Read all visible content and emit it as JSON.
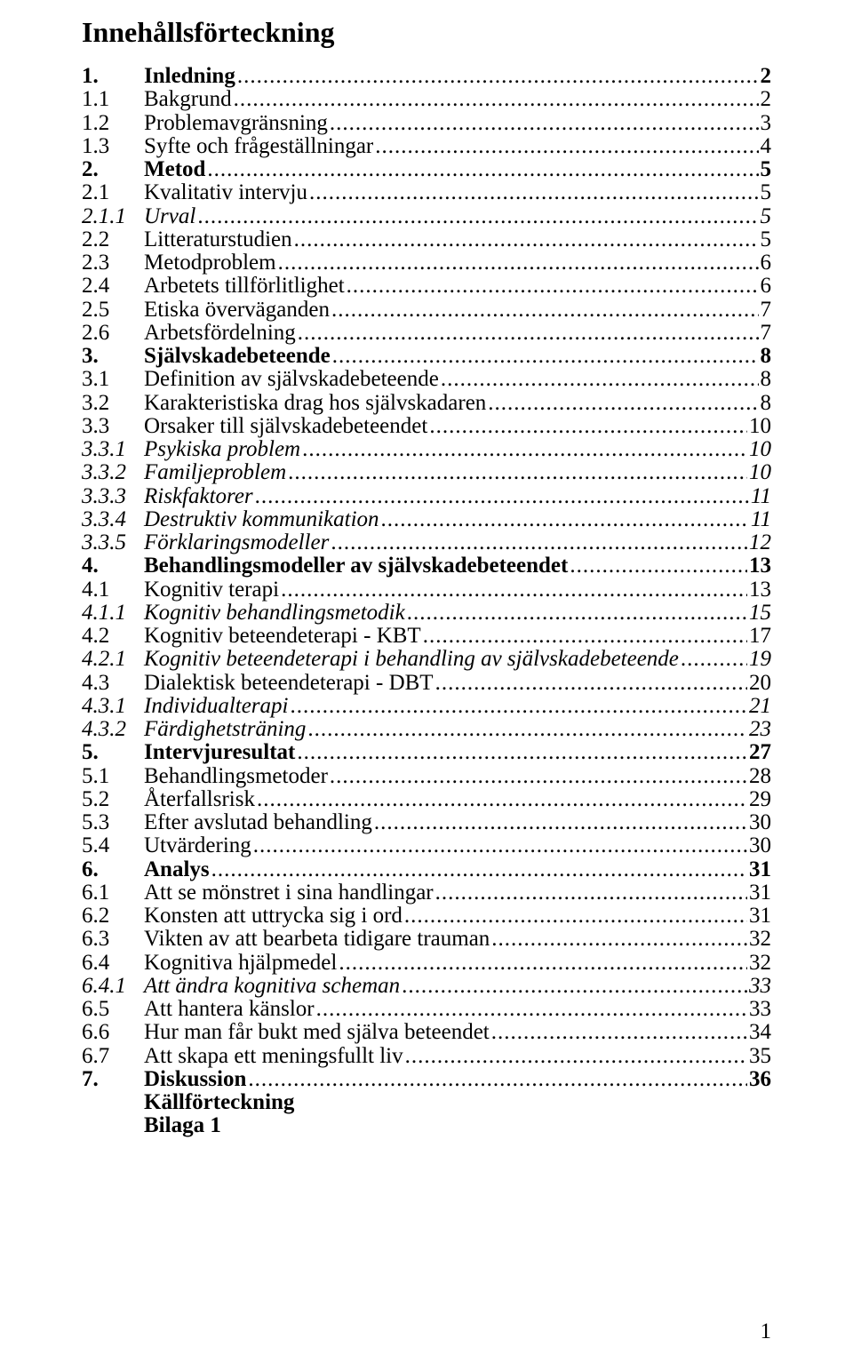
{
  "title": "Innehållsförteckning",
  "entries": [
    {
      "num": "1.",
      "label": "Inledning",
      "page": "2",
      "level": 1
    },
    {
      "num": "1.1",
      "label": "Bakgrund",
      "page": "2",
      "level": 2
    },
    {
      "num": "1.2",
      "label": "Problemavgränsning",
      "page": "3",
      "level": 2
    },
    {
      "num": "1.3",
      "label": "Syfte och frågeställningar",
      "page": "4",
      "level": 2
    },
    {
      "num": "2.",
      "label": "Metod",
      "page": "5",
      "level": 1
    },
    {
      "num": "2.1",
      "label": "Kvalitativ intervju",
      "page": "5",
      "level": 2
    },
    {
      "num": "2.1.1",
      "label": "Urval",
      "page": "5",
      "level": 3
    },
    {
      "num": "2.2",
      "label": "Litteraturstudien",
      "page": "5",
      "level": 2
    },
    {
      "num": "2.3",
      "label": "Metodproblem",
      "page": "6",
      "level": 2
    },
    {
      "num": "2.4",
      "label": "Arbetets tillförlitlighet",
      "page": "6",
      "level": 2
    },
    {
      "num": "2.5",
      "label": "Etiska överväganden",
      "page": "7",
      "level": 2
    },
    {
      "num": "2.6",
      "label": "Arbetsfördelning",
      "page": "7",
      "level": 2
    },
    {
      "num": "3.",
      "label": "Självskadebeteende",
      "page": "8",
      "level": 1
    },
    {
      "num": "3.1",
      "label": "Definition av självskadebeteende",
      "page": "8",
      "level": 2
    },
    {
      "num": "3.2",
      "label": "Karakteristiska drag hos självskadaren",
      "page": "8",
      "level": 2
    },
    {
      "num": "3.3",
      "label": "Orsaker till självskadebeteendet",
      "page": "10",
      "level": 2
    },
    {
      "num": "3.3.1",
      "label": "Psykiska problem",
      "page": "10",
      "level": 3
    },
    {
      "num": "3.3.2",
      "label": "Familjeproblem",
      "page": "10",
      "level": 3
    },
    {
      "num": "3.3.3",
      "label": "Riskfaktorer",
      "page": "11",
      "level": 3
    },
    {
      "num": "3.3.4",
      "label": "Destruktiv kommunikation",
      "page": "11",
      "level": 3
    },
    {
      "num": "3.3.5",
      "label": "Förklaringsmodeller",
      "page": "12",
      "level": 3
    },
    {
      "num": "4.",
      "label": "Behandlingsmodeller av självskadebeteendet",
      "page": "13",
      "level": 1
    },
    {
      "num": "4.1",
      "label": "Kognitiv terapi",
      "page": "13",
      "level": 2
    },
    {
      "num": "4.1.1",
      "label": "Kognitiv behandlingsmetodik",
      "page": "15",
      "level": 3
    },
    {
      "num": "4.2",
      "label": "Kognitiv beteendeterapi - KBT",
      "page": "17",
      "level": 2
    },
    {
      "num": "4.2.1",
      "label": "Kognitiv beteendeterapi i behandling av självskadebeteende",
      "page": "19",
      "level": 3
    },
    {
      "num": "4.3",
      "label": "Dialektisk beteendeterapi - DBT",
      "page": "20",
      "level": 2
    },
    {
      "num": "4.3.1",
      "label": "Individualterapi",
      "page": "21",
      "level": 3
    },
    {
      "num": "4.3.2",
      "label": "Färdighetsträning",
      "page": "23",
      "level": 3
    },
    {
      "num": "5.",
      "label": "Intervjuresultat",
      "page": "27",
      "level": 1
    },
    {
      "num": "5.1",
      "label": "Behandlingsmetoder",
      "page": "28",
      "level": 2
    },
    {
      "num": "5.2",
      "label": "Återfallsrisk",
      "page": "29",
      "level": 2
    },
    {
      "num": "5.3",
      "label": "Efter avslutad behandling",
      "page": "30",
      "level": 2
    },
    {
      "num": "5.4",
      "label": "Utvärdering",
      "page": "30",
      "level": 2
    },
    {
      "num": "6.",
      "label": "Analys",
      "page": "31",
      "level": 1
    },
    {
      "num": "6.1",
      "label": "Att se mönstret i sina handlingar",
      "page": "31",
      "level": 2
    },
    {
      "num": "6.2",
      "label": "Konsten att uttrycka sig i ord",
      "page": "31",
      "level": 2
    },
    {
      "num": "6.3",
      "label": "Vikten av att bearbeta tidigare trauman",
      "page": "32",
      "level": 2
    },
    {
      "num": "6.4",
      "label": "Kognitiva hjälpmedel",
      "page": "32",
      "level": 2
    },
    {
      "num": "6.4.1",
      "label": "Att ändra kognitiva scheman",
      "page": "33",
      "level": 3
    },
    {
      "num": "6.5",
      "label": "Att hantera känslor",
      "page": "33",
      "level": 2
    },
    {
      "num": "6.6",
      "label": "Hur man får bukt med själva beteendet",
      "page": "34",
      "level": 2
    },
    {
      "num": "6.7",
      "label": "Att skapa ett meningsfullt liv",
      "page": "35",
      "level": 2
    },
    {
      "num": "7.",
      "label": "Diskussion",
      "page": "36",
      "level": 1
    }
  ],
  "plain_entries": [
    "Källförteckning",
    "Bilaga 1"
  ],
  "page_number": "1",
  "colors": {
    "text": "#000000",
    "background": "#ffffff"
  },
  "typography": {
    "title_fontsize": 32,
    "body_fontsize": 25,
    "font_family": "Times New Roman"
  }
}
